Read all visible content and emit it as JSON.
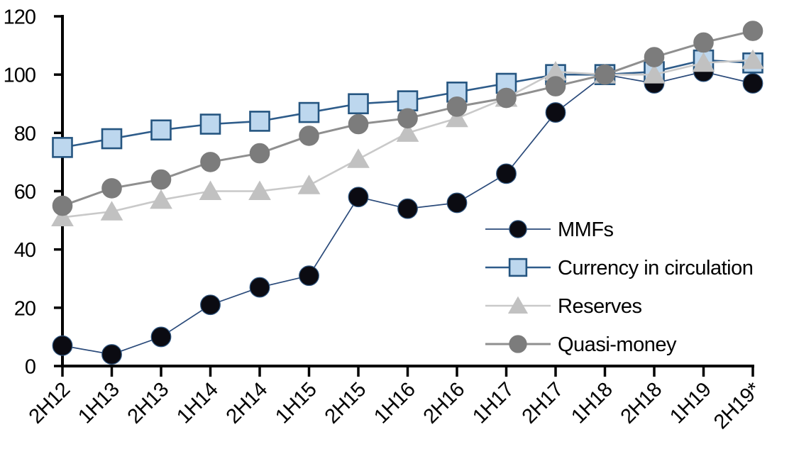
{
  "chart_data": {
    "type": "line",
    "title": "",
    "xlabel": "",
    "ylabel": "",
    "grid": false,
    "background": "#FFFFFF",
    "axis_color": "#000000",
    "text_color": "#000000",
    "categories": [
      "2H12",
      "1H13",
      "2H13",
      "1H14",
      "2H14",
      "1H15",
      "2H15",
      "1H16",
      "2H16",
      "1H17",
      "2H17",
      "1H18",
      "2H18",
      "1H19",
      "2H19*"
    ],
    "series": [
      {
        "name": "MMFs",
        "marker": "circle",
        "line_color": "#2A4A7A",
        "line_width": 1.7,
        "marker_fill": "#0B0B12",
        "marker_stroke": "#2E5580",
        "marker_stroke_width": 1.2,
        "values": [
          7,
          4,
          10,
          21,
          27,
          31,
          58,
          54,
          56,
          66,
          87,
          100,
          97,
          101,
          97
        ]
      },
      {
        "name": "Currency in circulation",
        "marker": "square",
        "line_color": "#2E5C8A",
        "line_width": 2.6,
        "marker_fill": "#BDD7EE",
        "marker_stroke": "#255580",
        "marker_stroke_width": 2.6,
        "values": [
          75,
          78,
          81,
          83,
          84,
          87,
          90,
          91,
          94,
          97,
          100,
          100,
          101,
          105,
          104
        ]
      },
      {
        "name": "Reserves",
        "marker": "triangle",
        "line_color": "#C9C9C9",
        "line_width": 2.6,
        "marker_fill": "#C1C1C1",
        "marker_stroke": "#C1C1C1",
        "marker_stroke_width": 1,
        "values": [
          51,
          53,
          57,
          60,
          60,
          62,
          71,
          80,
          85,
          92,
          101,
          100,
          100,
          104,
          105
        ]
      },
      {
        "name": "Quasi-money",
        "marker": "circle",
        "line_color": "#8F8F8F",
        "line_width": 3,
        "marker_fill": "#7C7C7C",
        "marker_stroke": "#7C7C7C",
        "marker_stroke_width": 1,
        "values": [
          55,
          61,
          64,
          70,
          73,
          79,
          83,
          85,
          89,
          92,
          96,
          100,
          106,
          111,
          115
        ]
      }
    ],
    "y_axis": {
      "min": 0,
      "max": 120,
      "tick_interval": 20,
      "tick_labels": [
        "0",
        "20",
        "40",
        "60",
        "80",
        "100",
        "120"
      ]
    },
    "x_axis": {
      "label_rotation": -45
    },
    "legend": {
      "position": "middle-right",
      "entries": [
        "MMFs",
        "Currency in circulation",
        "Reserves",
        "Quasi-money"
      ]
    }
  }
}
